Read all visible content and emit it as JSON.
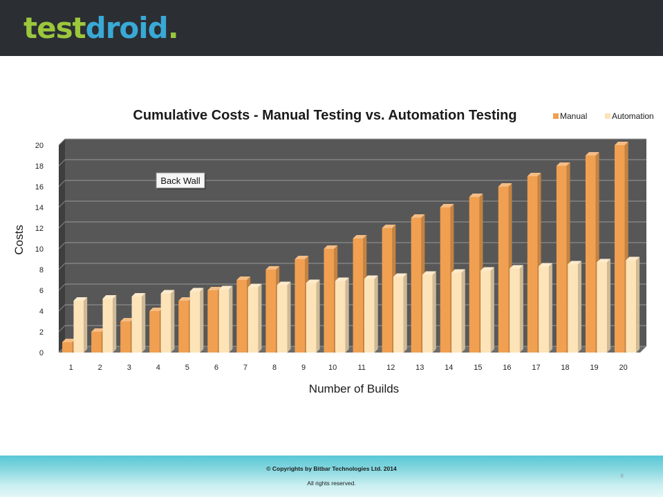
{
  "header": {
    "logo_part1": "test",
    "logo_part2": "droid",
    "logo_dot": "."
  },
  "chart_data": {
    "type": "bar",
    "title": "Cumulative Costs - Manual Testing vs. Automation Testing",
    "xlabel": "Number of Builds",
    "ylabel": "Costs",
    "categories": [
      "1",
      "2",
      "3",
      "4",
      "5",
      "6",
      "7",
      "8",
      "9",
      "10",
      "11",
      "12",
      "13",
      "14",
      "15",
      "16",
      "17",
      "18",
      "19",
      "20"
    ],
    "series": [
      {
        "name": "Manual",
        "color": "#f0a050",
        "values": [
          1,
          2,
          3,
          4,
          5,
          6,
          7,
          8,
          9,
          10,
          11,
          12,
          13,
          14,
          15,
          16,
          17,
          18,
          19,
          20
        ]
      },
      {
        "name": "Automation",
        "color": "#fde3b8",
        "values": [
          5,
          5.2,
          5.4,
          5.7,
          5.9,
          6.1,
          6.3,
          6.5,
          6.7,
          6.9,
          7.1,
          7.3,
          7.5,
          7.7,
          7.9,
          8.1,
          8.3,
          8.5,
          8.7,
          8.9
        ]
      }
    ],
    "ylim": [
      0,
      20
    ],
    "yticks": [
      0,
      2,
      4,
      6,
      8,
      10,
      12,
      14,
      16,
      18,
      20
    ],
    "grid": true,
    "legend": "top-right",
    "annotation": "Back Wall",
    "wall_color": "#575757"
  },
  "footer": {
    "copyright": "© Copyrights by Bitbar Technologies Ltd. 2014",
    "rights": "All rights reserved.",
    "page_number": "8"
  }
}
